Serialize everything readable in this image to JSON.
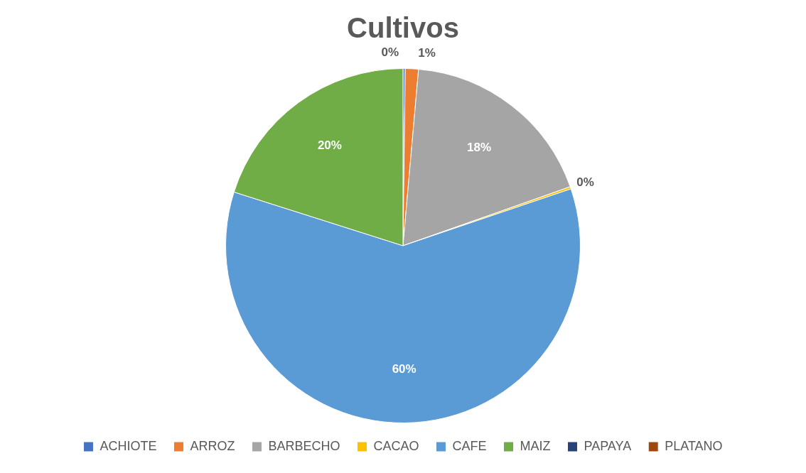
{
  "chart_data": {
    "type": "pie",
    "title": "Cultivos",
    "categories": [
      "ACHIOTE",
      "ARROZ",
      "BARBECHO",
      "CACAO",
      "CAFE",
      "MAIZ",
      "PAPAYA",
      "PLATANO"
    ],
    "values": [
      0.2,
      1.2,
      18.2,
      0.2,
      60.1,
      20.1,
      0,
      0
    ],
    "value_labels": [
      "0%",
      "1%",
      "18%",
      "0%",
      "60%",
      "20%",
      null,
      null
    ],
    "colors": [
      "#4472c4",
      "#ed7d31",
      "#a5a5a5",
      "#ffc000",
      "#5b9bd5",
      "#70ad47",
      "#264478",
      "#9e480e"
    ],
    "legend": "bottom"
  }
}
